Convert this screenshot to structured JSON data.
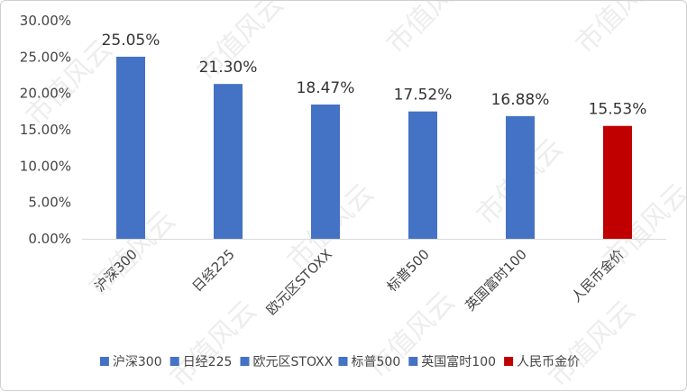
{
  "chart_data": {
    "type": "bar",
    "categories": [
      "沪深300",
      "日经225",
      "欧元区STOXX",
      "标普500",
      "英国富时100",
      "人民币金价"
    ],
    "values": [
      25.05,
      21.3,
      18.47,
      17.52,
      16.88,
      15.53
    ],
    "data_labels": [
      "25.05%",
      "21.30%",
      "18.47%",
      "17.52%",
      "16.88%",
      "15.53%"
    ],
    "bar_colors": [
      "#4472c4",
      "#4472c4",
      "#4472c4",
      "#4472c4",
      "#4472c4",
      "#c00000"
    ],
    "y_ticks": [
      "0.00%",
      "5.00%",
      "10.00%",
      "15.00%",
      "20.00%",
      "25.00%",
      "30.00%"
    ],
    "ylim": [
      0,
      30
    ],
    "grid": false,
    "legend_position": "bottom",
    "title": "",
    "xlabel": "",
    "ylabel": ""
  },
  "watermark": "市值风云"
}
